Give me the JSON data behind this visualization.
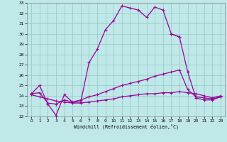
{
  "xlabel": "Windchill (Refroidissement éolien,°C)",
  "ylabel": "",
  "bg_color": "#c0e8e8",
  "grid_color": "#99cccc",
  "line_color": "#990099",
  "xlim": [
    -0.5,
    23.5
  ],
  "ylim": [
    22,
    33
  ],
  "xticks": [
    0,
    1,
    2,
    3,
    4,
    5,
    6,
    7,
    8,
    9,
    10,
    11,
    12,
    13,
    14,
    15,
    16,
    17,
    18,
    19,
    20,
    21,
    22,
    23
  ],
  "yticks": [
    22,
    23,
    24,
    25,
    26,
    27,
    28,
    29,
    30,
    31,
    32,
    33
  ],
  "line1": [
    24.2,
    25.0,
    23.2,
    22.1,
    24.1,
    23.4,
    23.4,
    27.2,
    28.5,
    30.4,
    31.3,
    32.7,
    32.5,
    32.3,
    31.6,
    32.6,
    32.3,
    30.0,
    29.7,
    null,
    null,
    null,
    null,
    null
  ],
  "line2": [
    24.2,
    24.3,
    23.3,
    23.2,
    23.6,
    23.4,
    23.6,
    23.9,
    24.1,
    24.4,
    24.7,
    25.0,
    25.2,
    25.4,
    25.6,
    25.9,
    26.1,
    26.3,
    26.5,
    24.6,
    23.9,
    23.8,
    23.7,
    23.9
  ],
  "line3": [
    24.1,
    23.9,
    23.7,
    23.5,
    23.4,
    23.3,
    23.3,
    23.4,
    23.5,
    23.6,
    23.7,
    23.9,
    24.0,
    24.1,
    24.2,
    24.2,
    24.3,
    24.3,
    24.4,
    24.3,
    24.2,
    24.0,
    23.8,
    24.0
  ],
  "line4": [
    null,
    null,
    null,
    null,
    null,
    null,
    null,
    null,
    null,
    null,
    null,
    null,
    null,
    null,
    null,
    null,
    null,
    30.0,
    29.7,
    26.3,
    23.8,
    23.6,
    23.6,
    23.9
  ]
}
